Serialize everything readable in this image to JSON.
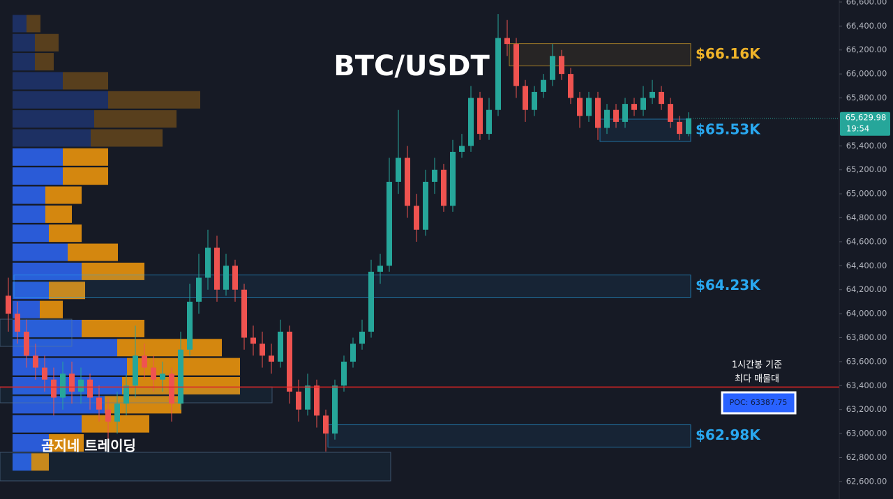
{
  "chart_data": {
    "type": "candlestick",
    "title": "BTC/USDT",
    "watermark": "곰지네 트레이딩",
    "ylim": [
      62454,
      66617
    ],
    "yticks": [
      {
        "value": 66600,
        "label": "66,600.00"
      },
      {
        "value": 66400,
        "label": "66,400.00"
      },
      {
        "value": 66200,
        "label": "66,200.00"
      },
      {
        "value": 66000,
        "label": "66,000.00"
      },
      {
        "value": 65800,
        "label": "65,800.00"
      },
      {
        "value": 65400,
        "label": "65,400.00"
      },
      {
        "value": 65200,
        "label": "65,200.00"
      },
      {
        "value": 65000,
        "label": "65,000.00"
      },
      {
        "value": 64800,
        "label": "64,800.00"
      },
      {
        "value": 64600,
        "label": "64,600.00"
      },
      {
        "value": 64400,
        "label": "64,400.00"
      },
      {
        "value": 64200,
        "label": "64,200.00"
      },
      {
        "value": 64000,
        "label": "64,000.00"
      },
      {
        "value": 63800,
        "label": "63,800.00"
      },
      {
        "value": 63600,
        "label": "63,600.00"
      },
      {
        "value": 63400,
        "label": "63,400.00"
      },
      {
        "value": 63200,
        "label": "63,200.00"
      },
      {
        "value": 63000,
        "label": "63,000.00"
      },
      {
        "value": 62800,
        "label": "62,800.00"
      },
      {
        "value": 62600,
        "label": "62,600.00"
      }
    ],
    "up_color": "#26a69a",
    "down_color": "#ef5350",
    "open": [
      64150,
      64000,
      63850,
      63650,
      63550,
      63450,
      63300,
      63500,
      63350,
      63450,
      63300,
      63200,
      63100,
      63250,
      63400,
      63650,
      63550,
      63450,
      63500,
      63250,
      63700,
      64100,
      64300,
      64550,
      64200,
      64400,
      64200,
      63800,
      63750,
      63650,
      63600,
      63850,
      63350,
      63200,
      63400,
      63150,
      63000,
      63400,
      63600,
      63750,
      63850,
      64350,
      64400,
      65100,
      65300,
      64900,
      64700,
      65100,
      65200,
      64900,
      65350,
      65400,
      65800,
      65500,
      65700,
      66300,
      66250,
      65900,
      65700,
      65850,
      65950,
      66150,
      66000,
      65800,
      65650,
      65800,
      65550,
      65700,
      65600,
      65750,
      65700,
      65800,
      65850,
      65750,
      65600,
      65500
    ],
    "high": [
      64300,
      64100,
      63950,
      63750,
      63650,
      63550,
      63600,
      63600,
      63550,
      63500,
      63400,
      63300,
      63350,
      63500,
      63900,
      63750,
      63650,
      63600,
      63550,
      63850,
      64250,
      64500,
      64700,
      64650,
      64500,
      64450,
      64250,
      63900,
      63850,
      63750,
      63950,
      63900,
      63450,
      63500,
      63450,
      63200,
      63450,
      63650,
      63800,
      63950,
      64450,
      64500,
      65300,
      65700,
      65400,
      65000,
      65200,
      65300,
      65250,
      65450,
      65500,
      65900,
      65850,
      65800,
      66500,
      66450,
      66300,
      65950,
      65900,
      66000,
      66250,
      66200,
      66050,
      65850,
      65850,
      65850,
      65750,
      65750,
      65800,
      65800,
      65900,
      65950,
      65900,
      65800,
      65650,
      65680
    ],
    "low": [
      63850,
      63750,
      63550,
      63450,
      63350,
      63150,
      63200,
      63250,
      63250,
      63200,
      63100,
      62950,
      63000,
      63150,
      63300,
      63450,
      63350,
      63350,
      63100,
      63200,
      63650,
      64000,
      64200,
      64100,
      64150,
      64100,
      63700,
      63650,
      63550,
      63500,
      63550,
      63250,
      63100,
      63150,
      63050,
      62850,
      62950,
      63350,
      63550,
      63700,
      63800,
      64250,
      64350,
      65000,
      64800,
      64600,
      64650,
      65000,
      64850,
      64850,
      65300,
      65350,
      65450,
      65450,
      65650,
      66150,
      65800,
      65600,
      65650,
      65800,
      65900,
      65950,
      65750,
      65550,
      65600,
      65450,
      65500,
      65550,
      65550,
      65650,
      65650,
      65750,
      65700,
      65550,
      65450,
      65480
    ],
    "close": [
      64000,
      63850,
      63650,
      63550,
      63450,
      63300,
      63500,
      63350,
      63450,
      63300,
      63200,
      63100,
      63250,
      63400,
      63650,
      63550,
      63450,
      63500,
      63250,
      63700,
      64100,
      64300,
      64550,
      64200,
      64400,
      64200,
      63800,
      63750,
      63650,
      63600,
      63850,
      63350,
      63200,
      63400,
      63150,
      63000,
      63400,
      63600,
      63750,
      63850,
      64350,
      64400,
      65100,
      65300,
      64900,
      64700,
      65100,
      65200,
      64900,
      65350,
      65400,
      65800,
      65500,
      65700,
      66300,
      66250,
      65900,
      65700,
      65850,
      65950,
      66150,
      66000,
      65800,
      65650,
      65800,
      65550,
      65700,
      65600,
      65750,
      65700,
      65800,
      65850,
      65750,
      65600,
      65500,
      65630
    ],
    "profile": {
      "prices": [
        66420,
        66261,
        66102,
        65943,
        65784,
        65625,
        65466,
        65307,
        65148,
        64989,
        64830,
        64671,
        64512,
        64353,
        64194,
        64035,
        63876,
        63717,
        63558,
        63399,
        63240,
        63081,
        62922,
        62763
      ],
      "buy": [
        20,
        32,
        32,
        72,
        137,
        117,
        112,
        72,
        72,
        47,
        47,
        52,
        79,
        99,
        52,
        39,
        99,
        150,
        164,
        157,
        132,
        99,
        52,
        27
      ],
      "sell": [
        20,
        34,
        27,
        65,
        132,
        118,
        103,
        65,
        65,
        52,
        38,
        47,
        72,
        90,
        52,
        33,
        90,
        150,
        162,
        169,
        110,
        97,
        50,
        25
      ],
      "buy_color": "#2a5bd7",
      "sell_color": "#d4870f",
      "value_area": [
        62600,
        65400
      ]
    },
    "zones": [
      {
        "value": 66160,
        "label": "$66.16K",
        "color": "#f0b429"
      },
      {
        "value": 65530,
        "label": "$65.53K",
        "color": "#29a8f0"
      },
      {
        "value": 64230,
        "label": "$64.23K",
        "color": "#29a8f0"
      },
      {
        "value": 62980,
        "label": "$62.98K",
        "color": "#29a8f0"
      }
    ],
    "poc": {
      "value": 63387.75,
      "label": "POC: 63387.75",
      "note": [
        "1시간봉 기준",
        "최다 매물대"
      ],
      "color": "#e02424"
    },
    "last_price": {
      "value": 65629.98,
      "label": "65,629.98",
      "countdown": "19:54"
    }
  }
}
